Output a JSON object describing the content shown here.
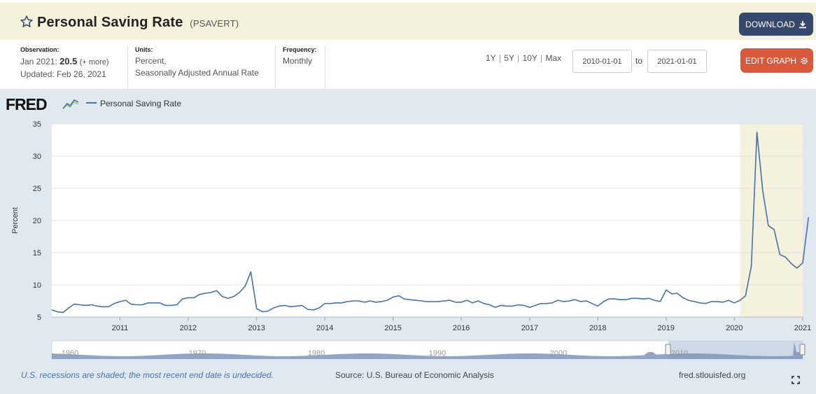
{
  "header": {
    "title": "Personal Saving Rate",
    "series_code": "(PSAVERT)",
    "download_label": "DOWNLOAD"
  },
  "observation": {
    "label": "Observation:",
    "period": "Jan 2021:",
    "value": "20.5",
    "more": "(+ more)",
    "updated": "Updated: Feb 26, 2021"
  },
  "units": {
    "label": "Units:",
    "line1": "Percent,",
    "line2": "Seasonally Adjusted Annual Rate"
  },
  "frequency": {
    "label": "Frequency:",
    "value": "Monthly"
  },
  "range": {
    "options": [
      "1Y",
      "5Y",
      "10Y",
      "Max"
    ],
    "start": "2010-01-01",
    "to_label": "to",
    "end": "2021-01-01"
  },
  "edit_label": "EDIT GRAPH",
  "chart_data": {
    "type": "line",
    "logo": "FRED",
    "legend": [
      "Personal Saving Rate"
    ],
    "ylabel": "Percent",
    "ylim": [
      5,
      35
    ],
    "yticks": [
      5,
      10,
      15,
      20,
      25,
      30,
      35
    ],
    "xlim": [
      "2010-01-01",
      "2021-01-01"
    ],
    "xticks": [
      "2011",
      "2012",
      "2013",
      "2014",
      "2015",
      "2016",
      "2017",
      "2018",
      "2019",
      "2020",
      "2021"
    ],
    "recession": [
      "2020-02-01",
      "2021-01-01"
    ],
    "series": [
      {
        "name": "Personal Saving Rate",
        "color": "#4572a7",
        "start": "2010-01",
        "values": [
          6.1,
          5.8,
          5.7,
          6.4,
          7.0,
          6.9,
          6.8,
          6.9,
          6.7,
          6.6,
          6.6,
          7.1,
          7.4,
          7.6,
          7.0,
          6.9,
          6.9,
          7.2,
          7.2,
          7.2,
          6.8,
          6.8,
          6.9,
          7.8,
          8.0,
          8.0,
          8.5,
          8.7,
          8.8,
          9.1,
          8.2,
          7.9,
          8.2,
          8.8,
          9.8,
          12.0,
          6.3,
          5.8,
          5.9,
          6.4,
          6.7,
          6.8,
          6.6,
          6.7,
          6.8,
          6.2,
          6.1,
          6.4,
          7.1,
          7.1,
          7.2,
          7.2,
          7.4,
          7.5,
          7.5,
          7.3,
          7.5,
          7.3,
          7.4,
          7.6,
          8.1,
          8.3,
          7.8,
          7.7,
          7.6,
          7.5,
          7.4,
          7.4,
          7.4,
          7.5,
          7.6,
          7.3,
          7.3,
          7.6,
          7.2,
          7.5,
          7.1,
          6.9,
          6.5,
          6.8,
          6.7,
          6.7,
          6.9,
          6.8,
          6.5,
          6.8,
          7.1,
          7.1,
          7.2,
          7.6,
          7.4,
          7.5,
          7.7,
          7.4,
          7.5,
          7.1,
          6.7,
          7.4,
          7.8,
          7.8,
          7.7,
          7.7,
          7.9,
          7.9,
          7.8,
          7.9,
          7.6,
          7.4,
          9.2,
          8.6,
          8.7,
          8.0,
          7.6,
          7.4,
          7.2,
          7.1,
          7.4,
          7.4,
          7.3,
          7.6,
          7.2,
          7.6,
          8.3,
          12.9,
          33.7,
          24.6,
          19.2,
          18.6,
          14.7,
          14.3,
          13.3,
          12.6,
          13.4,
          20.5
        ]
      }
    ],
    "navigator_labels": [
      "1960",
      "1970",
      "1980",
      "1990",
      "2000",
      "2010"
    ]
  },
  "footer": {
    "recession_note": "U.S. recessions are shaded; the most recent end date is undecided.",
    "source": "Source: U.S. Bureau of Economic Analysis",
    "url": "fred.stlouisfed.org"
  }
}
